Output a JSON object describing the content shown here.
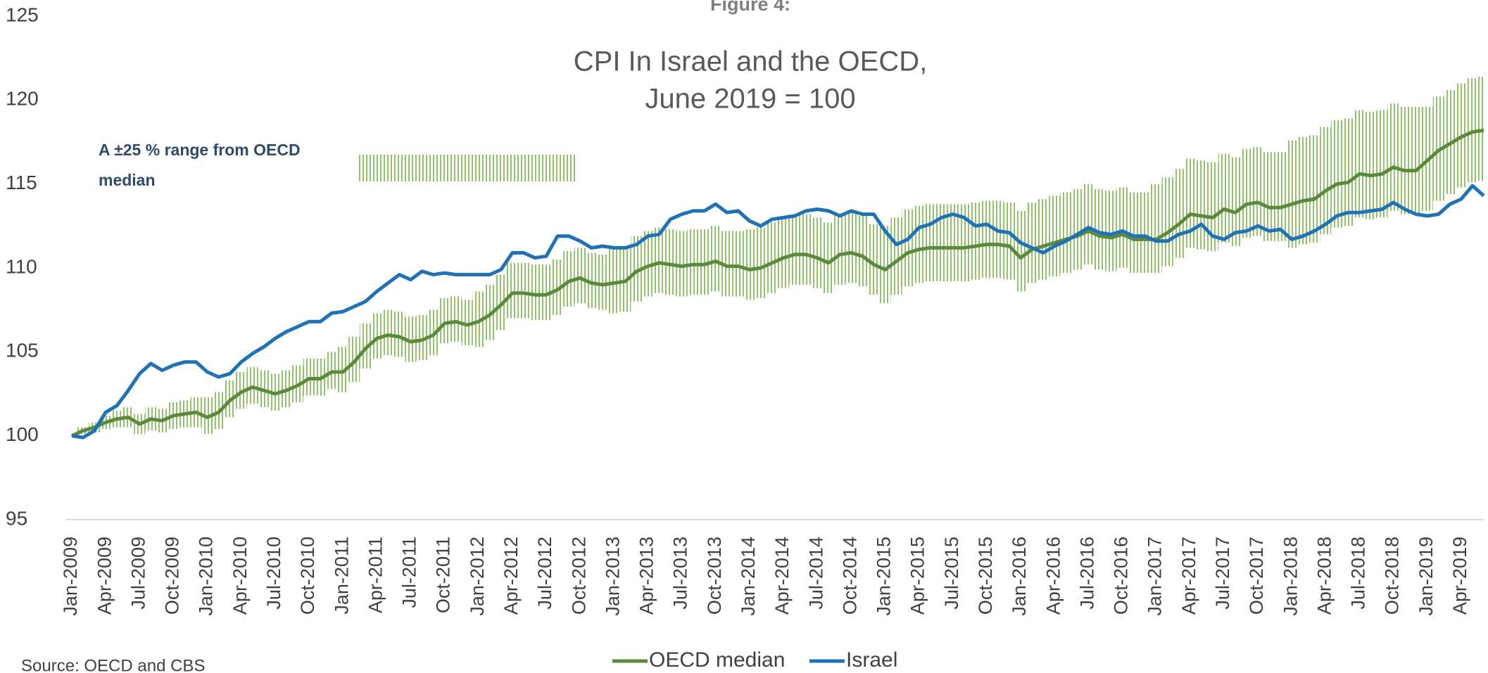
{
  "chart_data": {
    "type": "line",
    "title": "Figure 4:",
    "subtitle": [
      "CPI In Israel and the OECD,",
      "June 2019 = 100"
    ],
    "source": "Source: OECD and CBS",
    "categories": [
      "Jan-2009",
      null,
      null,
      "Apr-2009",
      null,
      null,
      "Jul-2009",
      null,
      null,
      "Oct-2009",
      null,
      null,
      "Jan-2010",
      null,
      null,
      "Apr-2010",
      null,
      null,
      "Jul-2010",
      null,
      null,
      "Oct-2010",
      null,
      null,
      "Jan-2011",
      null,
      null,
      "Apr-2011",
      null,
      null,
      "Jul-2011",
      null,
      null,
      "Oct-2011",
      null,
      null,
      "Jan-2012",
      null,
      null,
      "Apr-2012",
      null,
      null,
      "Jul-2012",
      null,
      null,
      "Oct-2012",
      null,
      null,
      "Jan-2013",
      null,
      null,
      "Apr-2013",
      null,
      null,
      "Jul-2013",
      null,
      null,
      "Oct-2013",
      null,
      null,
      "Jan-2014",
      null,
      null,
      "Apr-2014",
      null,
      null,
      "Jul-2014",
      null,
      null,
      "Oct-2014",
      null,
      null,
      "Jan-2015",
      null,
      null,
      "Apr-2015",
      null,
      null,
      "Jul-2015",
      null,
      null,
      "Oct-2015",
      null,
      null,
      "Jan-2016",
      null,
      null,
      "Apr-2016",
      null,
      null,
      "Jul-2016",
      null,
      null,
      "Oct-2016",
      null,
      null,
      "Jan-2017",
      null,
      null,
      "Apr-2017",
      null,
      null,
      "Jul-2017",
      null,
      null,
      "Oct-2017",
      null,
      null,
      "Jan-2018",
      null,
      null,
      "Apr-2018",
      null,
      null,
      "Jul-2018",
      null,
      null,
      "Oct-2018",
      null,
      null,
      "Jan-2019",
      null,
      null,
      "Apr-2019",
      null,
      null
    ],
    "series": [
      {
        "name": "OECD median",
        "color": "#5b8a3c",
        "values": [
          100.0,
          100.3,
          100.5,
          100.8,
          101.0,
          101.1,
          100.7,
          101.0,
          100.9,
          101.2,
          101.3,
          101.4,
          101.1,
          101.4,
          102.1,
          102.6,
          102.9,
          102.7,
          102.5,
          102.7,
          103.0,
          103.4,
          103.4,
          103.8,
          103.8,
          104.4,
          105.2,
          105.8,
          106.0,
          105.9,
          105.6,
          105.7,
          106.0,
          106.7,
          106.8,
          106.6,
          106.8,
          107.2,
          107.8,
          108.5,
          108.5,
          108.4,
          108.4,
          108.7,
          109.2,
          109.4,
          109.1,
          109.0,
          109.1,
          109.2,
          109.8,
          110.1,
          110.3,
          110.2,
          110.1,
          110.2,
          110.2,
          110.4,
          110.1,
          110.1,
          109.9,
          110.0,
          110.3,
          110.6,
          110.8,
          110.8,
          110.6,
          110.3,
          110.8,
          110.9,
          110.7,
          110.2,
          109.9,
          110.4,
          110.9,
          111.1,
          111.2,
          111.2,
          111.2,
          111.2,
          111.3,
          111.4,
          111.4,
          111.3,
          110.6,
          111.1,
          111.3,
          111.5,
          111.7,
          111.9,
          112.2,
          111.9,
          111.8,
          112.0,
          111.7,
          111.7,
          111.7,
          112.1,
          112.6,
          113.2,
          113.1,
          113.0,
          113.5,
          113.3,
          113.8,
          113.9,
          113.6,
          113.6,
          113.8,
          114.0,
          114.1,
          114.6,
          115.0,
          115.1,
          115.6,
          115.5,
          115.6,
          116.0,
          115.8,
          115.8,
          116.4,
          117.0,
          117.4,
          117.8,
          118.1,
          118.2
        ]
      },
      {
        "name": "Israel",
        "color": "#1f72b8",
        "values": [
          100.0,
          99.9,
          100.3,
          101.4,
          101.8,
          102.7,
          103.7,
          104.3,
          103.9,
          104.2,
          104.4,
          104.4,
          103.8,
          103.5,
          103.7,
          104.4,
          104.9,
          105.3,
          105.8,
          106.2,
          106.5,
          106.8,
          106.8,
          107.3,
          107.4,
          107.7,
          108.0,
          108.6,
          109.1,
          109.6,
          109.3,
          109.8,
          109.6,
          109.7,
          109.6,
          109.6,
          109.6,
          109.6,
          109.9,
          110.9,
          110.9,
          110.6,
          110.7,
          111.9,
          111.9,
          111.6,
          111.2,
          111.3,
          111.2,
          111.2,
          111.4,
          111.9,
          112.0,
          112.9,
          113.2,
          113.4,
          113.4,
          113.8,
          113.3,
          113.4,
          112.8,
          112.5,
          112.9,
          113.0,
          113.1,
          113.4,
          113.5,
          113.4,
          113.1,
          113.4,
          113.2,
          113.2,
          112.2,
          111.4,
          111.7,
          112.4,
          112.6,
          113.0,
          113.2,
          113.0,
          112.5,
          112.6,
          112.2,
          112.1,
          111.5,
          111.2,
          110.9,
          111.3,
          111.6,
          112.0,
          112.4,
          112.1,
          112.0,
          112.2,
          111.9,
          111.9,
          111.6,
          111.6,
          112.0,
          112.2,
          112.6,
          111.9,
          111.7,
          112.1,
          112.2,
          112.5,
          112.2,
          112.3,
          111.7,
          111.9,
          112.2,
          112.6,
          113.1,
          113.3,
          113.3,
          113.4,
          113.5,
          113.9,
          113.5,
          113.2,
          113.1,
          113.2,
          113.8,
          114.1,
          114.9,
          114.3
        ]
      }
    ],
    "band": {
      "label": "A ±25 % range from OECD median",
      "color": "#8fc26a",
      "upper": [
        100.0,
        100.5,
        100.8,
        101.2,
        101.5,
        101.7,
        101.3,
        101.7,
        101.6,
        102.0,
        102.1,
        102.3,
        102.3,
        102.6,
        103.3,
        103.8,
        104.1,
        103.9,
        103.7,
        103.9,
        104.2,
        104.6,
        104.6,
        105.0,
        105.3,
        105.9,
        106.7,
        107.3,
        107.5,
        107.4,
        107.1,
        107.2,
        107.5,
        108.2,
        108.3,
        108.1,
        108.6,
        109.0,
        109.6,
        110.3,
        110.3,
        110.2,
        110.2,
        110.5,
        111.0,
        111.2,
        110.9,
        110.8,
        111.2,
        111.3,
        111.9,
        112.2,
        112.4,
        112.3,
        112.2,
        112.3,
        112.3,
        112.5,
        112.2,
        112.2,
        112.3,
        112.4,
        112.7,
        113.0,
        113.2,
        113.2,
        113.0,
        112.7,
        113.2,
        113.3,
        113.1,
        112.6,
        112.5,
        113.0,
        113.5,
        113.7,
        113.8,
        113.8,
        113.8,
        113.8,
        113.9,
        114.0,
        114.0,
        113.9,
        113.4,
        113.9,
        114.1,
        114.3,
        114.5,
        114.7,
        115.0,
        114.7,
        114.6,
        114.8,
        114.5,
        114.5,
        115.0,
        115.4,
        115.9,
        116.5,
        116.4,
        116.3,
        116.8,
        116.6,
        117.1,
        117.2,
        116.9,
        116.9,
        117.6,
        117.8,
        117.9,
        118.4,
        118.8,
        118.9,
        119.4,
        119.3,
        119.4,
        119.8,
        119.6,
        119.6,
        119.6,
        120.2,
        120.6,
        121.0,
        121.3,
        121.4
      ],
      "lower": [
        100.0,
        100.1,
        100.2,
        100.4,
        100.5,
        100.5,
        100.1,
        100.3,
        100.2,
        100.4,
        100.5,
        100.5,
        100.1,
        100.4,
        101.1,
        101.6,
        101.9,
        101.7,
        101.5,
        101.7,
        102.0,
        102.4,
        102.4,
        102.8,
        102.6,
        103.2,
        104.0,
        104.6,
        104.8,
        104.7,
        104.4,
        104.5,
        104.8,
        105.5,
        105.6,
        105.4,
        105.3,
        105.7,
        106.3,
        107.0,
        107.0,
        106.9,
        106.9,
        107.2,
        107.7,
        107.9,
        107.6,
        107.5,
        107.3,
        107.4,
        108.0,
        108.3,
        108.5,
        108.4,
        108.3,
        108.4,
        108.4,
        108.6,
        108.3,
        108.3,
        108.1,
        108.2,
        108.5,
        108.8,
        109.0,
        109.0,
        108.8,
        108.5,
        109.0,
        109.1,
        108.9,
        108.4,
        107.9,
        108.4,
        108.9,
        109.1,
        109.2,
        109.2,
        109.2,
        109.2,
        109.3,
        109.4,
        109.4,
        109.3,
        108.6,
        109.1,
        109.3,
        109.5,
        109.7,
        109.9,
        110.2,
        109.9,
        109.8,
        110.0,
        109.7,
        109.7,
        109.7,
        110.1,
        110.6,
        111.2,
        111.1,
        111.0,
        111.5,
        111.3,
        111.8,
        111.9,
        111.6,
        111.6,
        111.2,
        111.4,
        111.5,
        112.0,
        112.4,
        112.5,
        113.0,
        112.9,
        113.0,
        113.4,
        113.2,
        113.2,
        113.4,
        114.0,
        114.4,
        114.8,
        115.1,
        115.2
      ]
    },
    "ylim": [
      95,
      125
    ],
    "yticks": [
      95,
      100,
      105,
      110,
      115,
      120,
      125
    ],
    "grid": false,
    "legend": "bottom"
  }
}
